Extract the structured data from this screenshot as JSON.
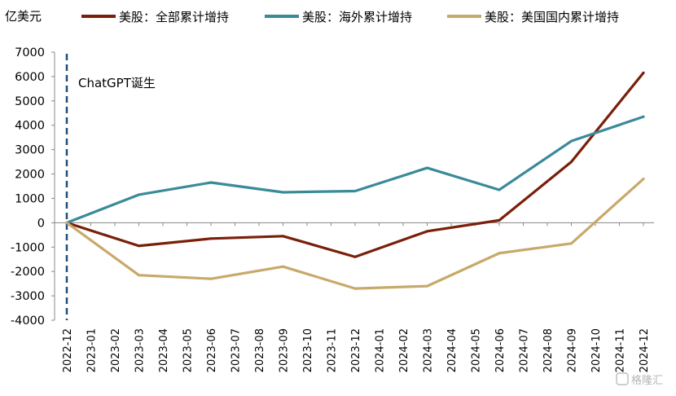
{
  "chart_data": {
    "type": "line",
    "title": "",
    "ylabel": "亿美元",
    "xlabel": "",
    "ylim": [
      -4000,
      7000
    ],
    "yticks": [
      7000,
      6000,
      5000,
      4000,
      3000,
      2000,
      1000,
      0,
      -1000,
      -2000,
      -3000,
      -4000
    ],
    "grid": false,
    "legend_position": "top",
    "categories": [
      "2022-12",
      "2023-01",
      "2023-02",
      "2023-03",
      "2023-04",
      "2023-05",
      "2023-06",
      "2023-07",
      "2023-08",
      "2023-09",
      "2023-10",
      "2023-11",
      "2023-12",
      "2024-01",
      "2024-02",
      "2024-03",
      "2024-04",
      "2024-05",
      "2024-06",
      "2024-07",
      "2024-08",
      "2024-09",
      "2024-10",
      "2024-11",
      "2024-12"
    ],
    "series": [
      {
        "name": "美股：全部累计增持",
        "color": "#7a1f0a",
        "x": [
          "2022-12",
          "2023-03",
          "2023-06",
          "2023-09",
          "2023-12",
          "2024-03",
          "2024-06",
          "2024-09",
          "2024-12"
        ],
        "values": [
          0,
          -950,
          -650,
          -550,
          -1400,
          -350,
          100,
          2500,
          6150
        ]
      },
      {
        "name": "美股：海外累计增持",
        "color": "#3a8a9a",
        "x": [
          "2022-12",
          "2023-03",
          "2023-06",
          "2023-09",
          "2023-12",
          "2024-03",
          "2024-06",
          "2024-09",
          "2024-12"
        ],
        "values": [
          0,
          1150,
          1650,
          1250,
          1300,
          2250,
          1350,
          3350,
          4350
        ]
      },
      {
        "name": "美股：美国国内累计增持",
        "color": "#c8a96a",
        "x": [
          "2022-12",
          "2023-03",
          "2023-06",
          "2023-09",
          "2023-12",
          "2024-03",
          "2024-06",
          "2024-09",
          "2024-12"
        ],
        "values": [
          0,
          -2150,
          -2300,
          -1800,
          -2700,
          -2600,
          -1250,
          -850,
          1800
        ]
      }
    ],
    "annotations": [
      {
        "text": "ChatGPT诞生",
        "x": "2022-12"
      }
    ]
  },
  "watermark": {
    "text": "格隆汇"
  }
}
